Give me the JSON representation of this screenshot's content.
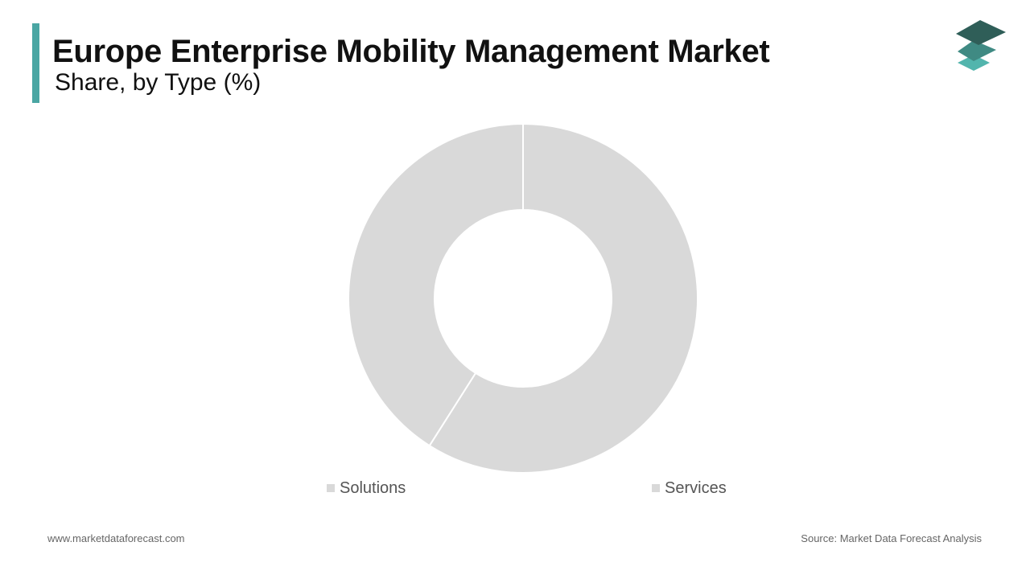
{
  "header": {
    "title": "Europe Enterprise Mobility Management Market",
    "subtitle": "Share, by Type (%)"
  },
  "logo": {
    "icon": "stacked-layers-icon",
    "colors": [
      "#2f5e58",
      "#3f8a83",
      "#52b5ad"
    ]
  },
  "chart_data": {
    "type": "pie",
    "style": "donut",
    "title": "Europe Enterprise Mobility Management Market",
    "subtitle": "Share, by Type (%)",
    "categories": [
      "Services",
      "Solutions"
    ],
    "values": [
      59,
      41
    ],
    "colors": [
      "#d9d9d9",
      "#d9d9d9"
    ],
    "start_angle_deg": 0,
    "direction": "clockwise",
    "legend_placement": "bottom",
    "legend": [
      {
        "label": "Solutions",
        "color": "#d9d9d9"
      },
      {
        "label": "Services",
        "color": "#d9d9d9"
      }
    ]
  },
  "footer": {
    "website": "www.marketdataforecast.com",
    "source": "Source: Market Data Forecast Analysis"
  }
}
